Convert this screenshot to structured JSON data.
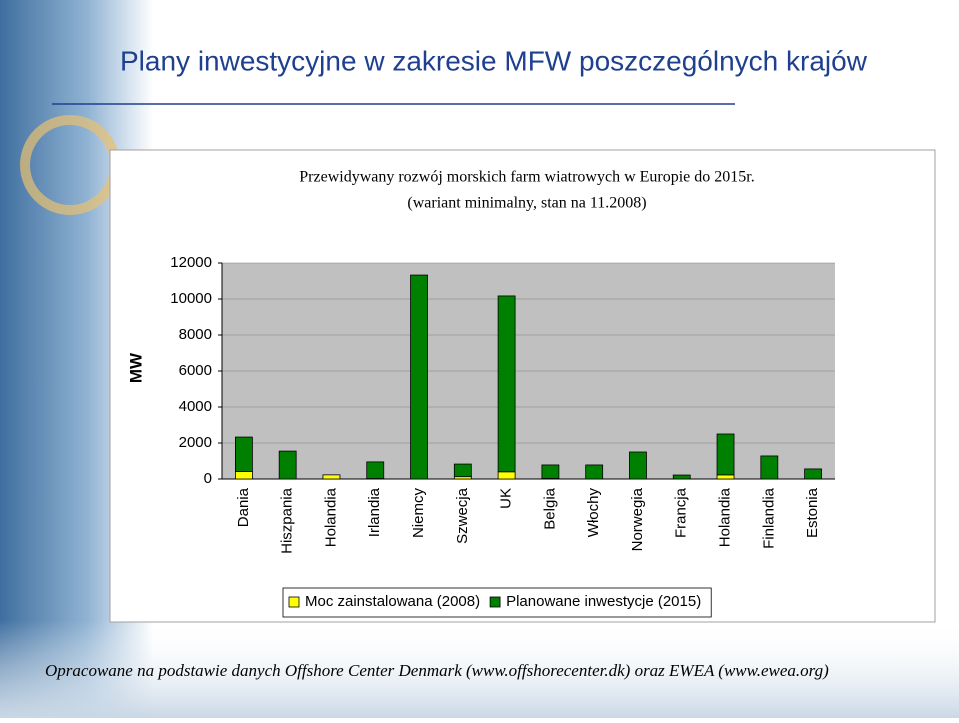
{
  "slide_title": "Plany inwestycyjne w zakresie MFW poszczególnych krajów",
  "footer": "Opracowane na podstawie danych Offshore Center Denmark (www.offshorecenter.dk) oraz EWEA (www.ewea.org)",
  "chart_data": {
    "type": "stacked_bar",
    "title": "Przewidywany rozwój morskich farm wiatrowych w Europie do 2015r.",
    "subtitle": "(wariant minimalny, stan na 11.2008)",
    "y_label": "MW",
    "categories": [
      "Dania",
      "Hiszpania",
      "Holandia",
      "Irlandia",
      "Niemcy",
      "Szwecja",
      "UK",
      "Belgia",
      "Włochy",
      "Norwegia",
      "Francja",
      "Holandia",
      "Finlandia",
      "Estonia"
    ],
    "series": [
      {
        "name": "Moc zainstalowana (2008)",
        "color": "#ffff00",
        "values": [
          420,
          0,
          230,
          25,
          0,
          130,
          400,
          30,
          0,
          0,
          0,
          230,
          0,
          0
        ]
      },
      {
        "name": "Planowane inwestycje (2015)",
        "color": "#008000",
        "values": [
          1910,
          1550,
          0,
          925,
          11330,
          700,
          9770,
          750,
          780,
          1500,
          220,
          2270,
          1280,
          560
        ]
      }
    ],
    "ylim": [
      0,
      12000
    ],
    "yticks": [
      0,
      2000,
      4000,
      6000,
      8000,
      10000,
      12000
    ],
    "grid": true,
    "legend": "bottom"
  }
}
